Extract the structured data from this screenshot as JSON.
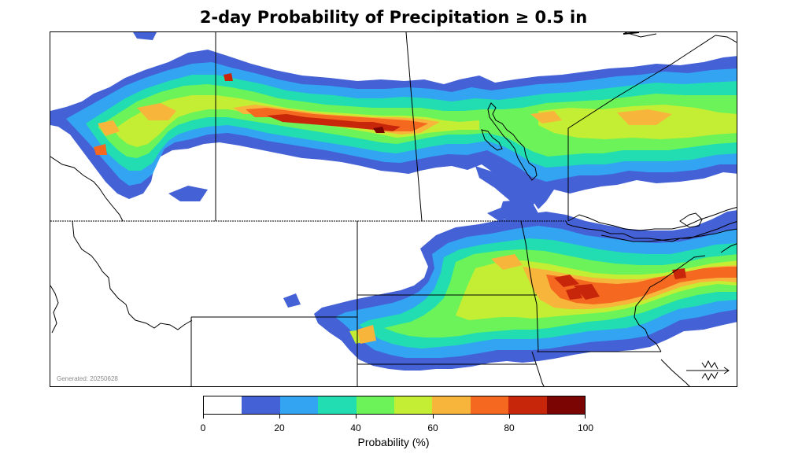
{
  "title": "2-day Probability of Precipitation ≥ 0.5 in",
  "generated": "Generated: 20250628",
  "colorbar": {
    "label": "Probability (%)",
    "tick_labels": [
      "0",
      "20",
      "40",
      "60",
      "80",
      "100"
    ],
    "bins": [
      {
        "range": "0-10",
        "color": "#ffffff"
      },
      {
        "range": "10-20",
        "color": "#4461d6"
      },
      {
        "range": "20-30",
        "color": "#33a4f2"
      },
      {
        "range": "30-40",
        "color": "#22dcb2"
      },
      {
        "range": "40-50",
        "color": "#6cf35a"
      },
      {
        "range": "50-60",
        "color": "#c3ee34"
      },
      {
        "range": "60-70",
        "color": "#f8b53b"
      },
      {
        "range": "70-80",
        "color": "#f46820"
      },
      {
        "range": "80-90",
        "color": "#c8260b"
      },
      {
        "range": "90-100",
        "color": "#7a0503"
      }
    ]
  },
  "map": {
    "subject": "precipitation probability over northern plains and southern Canadian prairies",
    "north_arrow_icon": "north-arrow-icon"
  }
}
